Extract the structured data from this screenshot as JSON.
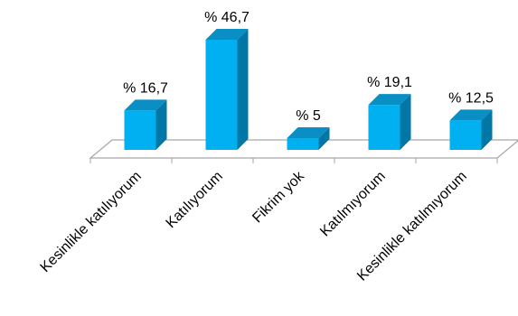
{
  "chart_data": {
    "type": "bar",
    "style": "3d-column",
    "categories": [
      "Kesinlikle katılıyorum",
      "Katılıyorum",
      "Fikrim yok",
      "Katılmıyorum",
      "Kesinlikle katılmıyorum"
    ],
    "values": [
      16.7,
      46.7,
      5,
      19.1,
      12.5
    ],
    "data_labels": [
      "% 16,7",
      "% 46,7",
      "% 5",
      "% 19,1",
      "% 12,5"
    ],
    "title": "",
    "xlabel": "",
    "ylabel": "",
    "ylim": [
      0,
      50
    ],
    "grid": false,
    "legend": "none",
    "colors": {
      "bar_front": "#00B0F0",
      "bar_side": "#0077A6",
      "bar_top": "#0A8FC4",
      "floor": "#A6A6A6"
    }
  }
}
